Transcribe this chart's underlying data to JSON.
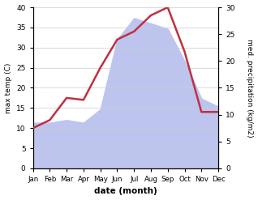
{
  "months": [
    "Jan",
    "Feb",
    "Mar",
    "Apr",
    "May",
    "Jun",
    "Jul",
    "Aug",
    "Sep",
    "Oct",
    "Nov",
    "Dec"
  ],
  "temp_max": [
    10,
    12,
    17.5,
    17,
    25,
    32,
    34,
    38,
    40,
    29,
    14,
    14
  ],
  "precipitation": [
    8.5,
    8.5,
    9,
    8.5,
    11,
    24,
    28,
    27,
    26,
    20,
    13,
    11.5
  ],
  "temp_color": "#c03040",
  "precip_fill_color": "#bdc5ef",
  "temp_ylim": [
    0,
    40
  ],
  "precip_ylim": [
    0,
    30
  ],
  "xlabel": "date (month)",
  "ylabel_left": "max temp (C)",
  "ylabel_right": "med. precipitation (kg/m2)",
  "temp_linewidth": 1.8
}
